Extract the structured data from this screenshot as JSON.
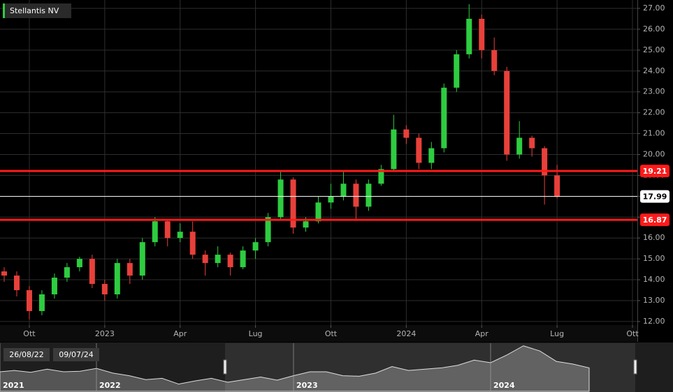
{
  "chart_data": [
    {
      "type": "candlestick",
      "title": "Stellantis NV",
      "categories": [
        null,
        null,
        "Ott",
        null,
        null,
        null,
        null,
        null,
        "2023",
        null,
        null,
        null,
        null,
        null,
        "Apr",
        null,
        null,
        null,
        null,
        null,
        "Lug",
        null,
        null,
        null,
        null,
        null,
        "Ott",
        null,
        null,
        null,
        null,
        null,
        "2024",
        null,
        null,
        null,
        null,
        null,
        "Apr",
        null,
        null,
        null,
        null,
        null,
        "Lug",
        null,
        null,
        null,
        null,
        null,
        "Ott"
      ],
      "open": [
        14.4,
        14.2,
        13.5,
        12.5,
        13.3,
        14.1,
        14.6,
        15.0,
        13.8,
        13.3,
        14.8,
        14.2,
        15.8,
        16.8,
        16.0,
        16.3,
        15.2,
        14.8,
        15.2,
        14.6,
        15.4,
        15.8,
        17.0,
        18.8,
        16.5,
        16.8,
        17.7,
        18.0,
        18.6,
        17.5,
        18.6,
        19.3,
        21.2,
        20.8,
        19.6,
        20.3,
        23.2,
        24.8,
        26.5,
        25.0,
        24.0,
        20.0,
        20.8,
        20.3,
        19.0,
        null,
        null,
        null,
        null,
        null,
        null
      ],
      "high": [
        14.6,
        14.4,
        13.7,
        13.5,
        14.3,
        14.8,
        15.1,
        15.2,
        14.0,
        15.0,
        15.0,
        16.0,
        17.0,
        16.9,
        16.7,
        16.8,
        15.4,
        15.6,
        15.3,
        15.6,
        16.0,
        17.2,
        19.2,
        18.9,
        17.0,
        18.0,
        18.6,
        19.2,
        18.8,
        18.8,
        19.5,
        21.9,
        21.4,
        21.0,
        20.6,
        23.4,
        25.0,
        27.2,
        26.7,
        25.6,
        24.2,
        21.6,
        20.9,
        20.4,
        19.5,
        null,
        null,
        null,
        null,
        null,
        null
      ],
      "low": [
        13.9,
        13.2,
        12.1,
        12.3,
        13.1,
        13.9,
        14.4,
        13.6,
        13.0,
        13.1,
        13.8,
        14.0,
        15.6,
        15.6,
        15.8,
        15.0,
        14.2,
        14.6,
        14.2,
        14.5,
        15.0,
        15.6,
        16.9,
        16.2,
        16.3,
        16.7,
        17.4,
        17.8,
        16.9,
        17.3,
        18.5,
        19.2,
        20.5,
        19.3,
        19.3,
        20.1,
        23.0,
        24.6,
        24.6,
        23.8,
        19.7,
        19.8,
        19.9,
        17.6,
        17.9,
        null,
        null,
        null,
        null,
        null,
        null
      ],
      "close": [
        14.2,
        13.5,
        12.5,
        13.3,
        14.1,
        14.6,
        15.0,
        13.8,
        13.3,
        14.8,
        14.2,
        15.8,
        16.8,
        16.0,
        16.3,
        15.2,
        14.8,
        15.2,
        14.6,
        15.4,
        15.8,
        17.0,
        18.8,
        16.5,
        16.8,
        17.7,
        18.0,
        18.6,
        17.5,
        18.6,
        19.3,
        21.2,
        20.8,
        19.6,
        20.3,
        23.2,
        24.8,
        26.5,
        25.0,
        24.0,
        20.0,
        20.8,
        20.3,
        19.0,
        17.99,
        null,
        null,
        null,
        null,
        null,
        null
      ],
      "up_color": "#2ecc40",
      "down_color": "#e8403a",
      "levels": [
        {
          "value": 19.21,
          "color": "#ff1a1a"
        },
        {
          "value": 16.87,
          "color": "#ff1a1a"
        }
      ],
      "ylim": [
        11.83,
        27.4
      ],
      "yticks": [
        {
          "value": 12,
          "label": "12.00"
        },
        {
          "value": 13,
          "label": "13.00"
        },
        {
          "value": 14,
          "label": "14.00"
        },
        {
          "value": 15,
          "label": "15.00"
        },
        {
          "value": 16,
          "label": "16.00"
        },
        {
          "value": 17,
          "label": "17.00"
        },
        {
          "value": 18,
          "label": "18.00"
        },
        {
          "value": 19,
          "label": "19.00"
        },
        {
          "value": 20,
          "label": "20.00"
        },
        {
          "value": 21,
          "label": "21.00"
        },
        {
          "value": 22,
          "label": "22.00"
        },
        {
          "value": 23,
          "label": "23.00"
        },
        {
          "value": 24,
          "label": "24.00"
        },
        {
          "value": 25,
          "label": "25.00"
        },
        {
          "value": 26,
          "label": "26.00"
        },
        {
          "value": 27,
          "label": "27.00"
        }
      ],
      "grid": true
    },
    {
      "type": "area",
      "range_start": "26/08/22",
      "range_end": "09/07/24",
      "categories": [
        "2021",
        null,
        null,
        null,
        null,
        null,
        "2022",
        null,
        null,
        null,
        null,
        null,
        null,
        null,
        null,
        null,
        null,
        null,
        "2023",
        null,
        null,
        null,
        null,
        null,
        null,
        null,
        null,
        null,
        null,
        null,
        "2024",
        null,
        null,
        null,
        null,
        null,
        null
      ],
      "values": [
        16.5,
        17.0,
        16.3,
        17.5,
        16.5,
        16.7,
        17.8,
        16.0,
        15.0,
        13.5,
        14.0,
        11.8,
        13.0,
        14.0,
        12.5,
        13.5,
        14.5,
        13.3,
        15.0,
        16.5,
        16.5,
        15.0,
        14.8,
        16.0,
        18.5,
        17.0,
        17.5,
        18.0,
        19.0,
        21.0,
        20.0,
        23.0,
        26.5,
        24.5,
        20.5,
        19.5,
        18.0
      ],
      "color": "#9a9a9a",
      "ylim": [
        9,
        27.5
      ]
    }
  ]
}
